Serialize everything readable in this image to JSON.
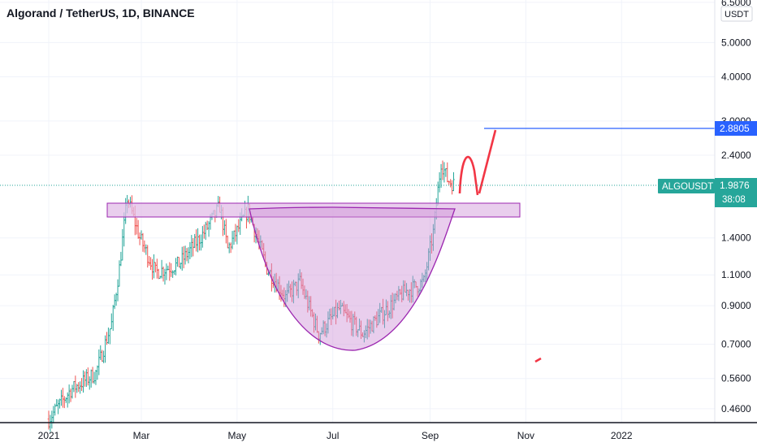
{
  "header": {
    "title": "Algorand / TetherUS, 1D, BINANCE"
  },
  "price_axis": {
    "currency_label": "USDT",
    "tick_labels": [
      "6.5000",
      "5.0000",
      "4.0000",
      "3.0000",
      "2.4000",
      "1.4000",
      "1.1000",
      "0.9000",
      "0.7000",
      "0.5600",
      "0.4600"
    ]
  },
  "time_axis": {
    "labels": [
      "2021",
      "Mar",
      "May",
      "Jul",
      "Sep",
      "Nov",
      "2022"
    ]
  },
  "markers": {
    "target": {
      "value": "2.8805",
      "color": "#2962ff"
    },
    "last_price": {
      "symbol": "ALGOUSDT",
      "value": "1.9876",
      "countdown": "38:08",
      "color": "#26a69a"
    }
  },
  "colors": {
    "up": "#26a69a",
    "down": "#ef5350",
    "zone_fill": "#e1bee7",
    "zone_stroke": "#9c27b0",
    "cup_fill": "#ce93d8",
    "cup_stroke": "#9c27b0",
    "grid": "#f0f3fa",
    "arrow": "#f23645"
  },
  "chart_data": {
    "type": "candlestick",
    "title": "Algorand / TetherUS, 1D, BINANCE",
    "symbol": "ALGOUSDT",
    "exchange": "BINANCE",
    "interval": "1D",
    "scale": "log",
    "ylim": [
      0.42,
      6.6
    ],
    "x_ticks": [
      "2021",
      "Mar",
      "May",
      "Jul",
      "Sep",
      "Nov",
      "2022"
    ],
    "y_ticks": [
      6.5,
      5.0,
      4.0,
      3.0,
      2.4,
      1.4,
      1.1,
      0.9,
      0.7,
      0.56,
      0.46
    ],
    "approx_path": [
      {
        "date": "2021-01-01",
        "close": 0.43
      },
      {
        "date": "2021-01-15",
        "close": 0.52
      },
      {
        "date": "2021-01-31",
        "close": 0.58
      },
      {
        "date": "2021-02-10",
        "close": 0.8
      },
      {
        "date": "2021-02-15",
        "close": 1.15
      },
      {
        "date": "2021-02-20",
        "close": 1.82
      },
      {
        "date": "2021-02-28",
        "close": 1.4
      },
      {
        "date": "2021-03-10",
        "close": 1.12
      },
      {
        "date": "2021-03-25",
        "close": 1.18
      },
      {
        "date": "2021-04-10",
        "close": 1.45
      },
      {
        "date": "2021-04-20",
        "close": 1.72
      },
      {
        "date": "2021-04-25",
        "close": 1.3
      },
      {
        "date": "2021-05-08",
        "close": 1.68
      },
      {
        "date": "2021-05-20",
        "close": 1.15
      },
      {
        "date": "2021-06-01",
        "close": 0.95
      },
      {
        "date": "2021-06-10",
        "close": 1.05
      },
      {
        "date": "2021-06-22",
        "close": 0.75
      },
      {
        "date": "2021-07-05",
        "close": 0.88
      },
      {
        "date": "2021-07-20",
        "close": 0.75
      },
      {
        "date": "2021-08-01",
        "close": 0.85
      },
      {
        "date": "2021-08-15",
        "close": 0.98
      },
      {
        "date": "2021-08-28",
        "close": 1.05
      },
      {
        "date": "2021-09-03",
        "close": 1.45
      },
      {
        "date": "2021-09-08",
        "close": 2.3
      },
      {
        "date": "2021-09-12",
        "close": 2.05
      },
      {
        "date": "2021-09-16",
        "close": 1.9876
      }
    ],
    "last_price": 1.9876,
    "annotations": [
      {
        "type": "horizontal_line",
        "value": 2.8805
      },
      {
        "type": "resistance_zone",
        "from": 1.62,
        "to": 1.78
      },
      {
        "type": "cup_and_handle"
      }
    ]
  }
}
